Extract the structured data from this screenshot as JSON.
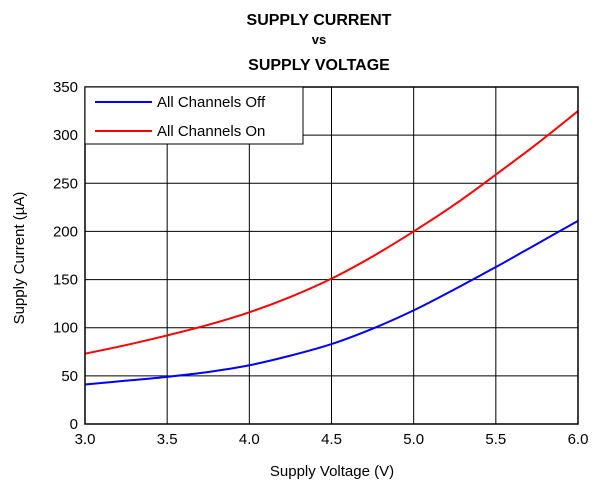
{
  "chart_data": {
    "type": "line",
    "title": [
      "SUPPLY CURRENT",
      "vs",
      "SUPPLY VOLTAGE"
    ],
    "xlabel": "Supply Voltage (V)",
    "ylabel": "Supply Current (µA)",
    "xlim": [
      3.0,
      6.0
    ],
    "ylim": [
      0,
      350
    ],
    "xticks": [
      "3.0",
      "3.5",
      "4.0",
      "4.5",
      "5.0",
      "5.5",
      "6.0"
    ],
    "yticks": [
      "0",
      "50",
      "100",
      "150",
      "200",
      "250",
      "300",
      "350"
    ],
    "grid": true,
    "legend_position": "top-left",
    "series": [
      {
        "name": "All Channels Off",
        "color": "#0000ff",
        "x": [
          3.0,
          3.25,
          3.5,
          3.75,
          4.0,
          4.25,
          4.5,
          4.75,
          5.0,
          5.25,
          5.5,
          5.75,
          6.0
        ],
        "y": [
          41,
          45,
          49,
          54,
          61,
          71,
          83,
          99,
          118,
          140,
          163,
          187,
          211
        ]
      },
      {
        "name": "All Channels On",
        "color": "#ff0000",
        "x": [
          3.0,
          3.25,
          3.5,
          3.75,
          4.0,
          4.25,
          4.5,
          4.75,
          5.0,
          5.25,
          5.5,
          5.75,
          6.0
        ],
        "y": [
          73,
          82,
          92,
          103,
          116,
          132,
          151,
          174,
          200,
          228,
          259,
          291,
          325
        ]
      }
    ]
  }
}
